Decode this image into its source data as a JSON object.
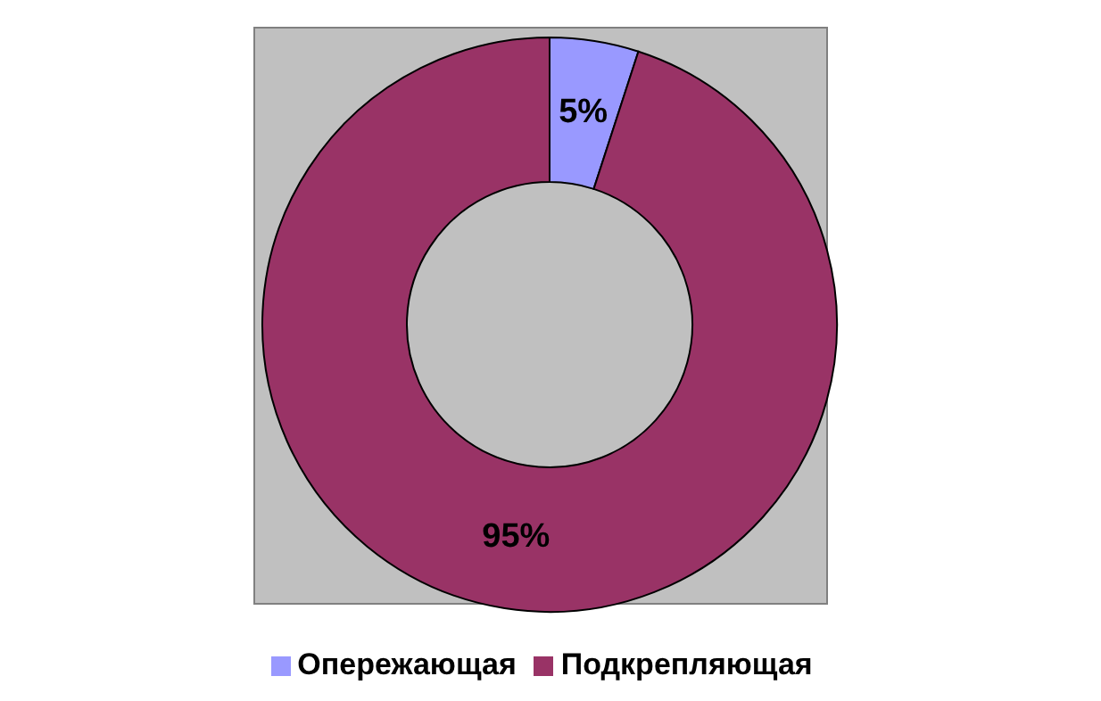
{
  "chart_data": {
    "type": "donut",
    "categories": [
      "Опережающая",
      "Подкрепляющая"
    ],
    "values": [
      5,
      95
    ],
    "colors": [
      "#9999ff",
      "#993366"
    ],
    "value_labels": [
      "5%",
      "95%"
    ],
    "legend": "bottom"
  }
}
